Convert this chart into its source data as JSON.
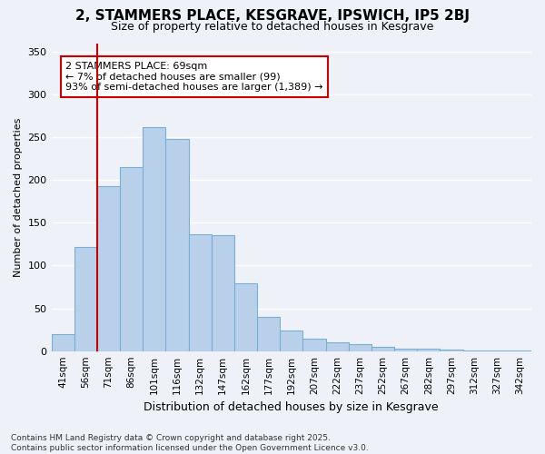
{
  "title": "2, STAMMERS PLACE, KESGRAVE, IPSWICH, IP5 2BJ",
  "subtitle": "Size of property relative to detached houses in Kesgrave",
  "xlabel": "Distribution of detached houses by size in Kesgrave",
  "ylabel": "Number of detached properties",
  "categories": [
    "41sqm",
    "56sqm",
    "71sqm",
    "86sqm",
    "101sqm",
    "116sqm",
    "132sqm",
    "147sqm",
    "162sqm",
    "177sqm",
    "192sqm",
    "207sqm",
    "222sqm",
    "237sqm",
    "252sqm",
    "267sqm",
    "282sqm",
    "297sqm",
    "312sqm",
    "327sqm",
    "342sqm"
  ],
  "values": [
    20,
    122,
    193,
    215,
    262,
    248,
    137,
    136,
    79,
    40,
    24,
    15,
    10,
    8,
    5,
    3,
    3,
    2,
    1,
    1,
    1
  ],
  "bar_color": "#b8d0ea",
  "bar_edge_color": "#7aafd4",
  "marker_line_color": "#cc0000",
  "annotation_text": "2 STAMMERS PLACE: 69sqm\n← 7% of detached houses are smaller (99)\n93% of semi-detached houses are larger (1,389) →",
  "annotation_box_color": "#ffffff",
  "annotation_box_edge": "#cc0000",
  "ylim": [
    0,
    360
  ],
  "yticks": [
    0,
    50,
    100,
    150,
    200,
    250,
    300,
    350
  ],
  "footer": "Contains HM Land Registry data © Crown copyright and database right 2025.\nContains public sector information licensed under the Open Government Licence v3.0.",
  "bg_color": "#eef2f8"
}
